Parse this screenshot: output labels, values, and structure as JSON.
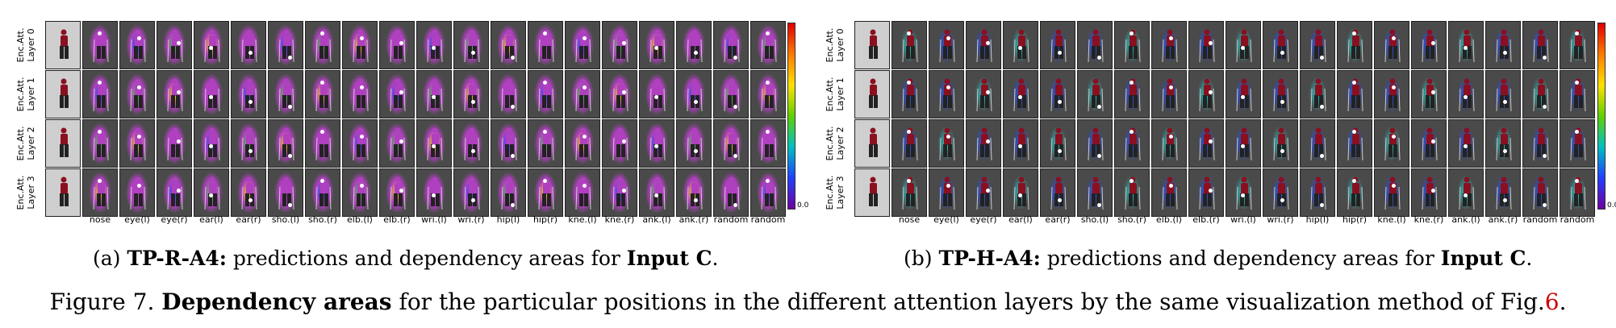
{
  "panels": [
    {
      "id": "a",
      "row_labels": [
        {
          "line1": "Enc.Att.",
          "line2": "Layer 0"
        },
        {
          "line1": "Enc.Att.",
          "line2": "Layer 1"
        },
        {
          "line1": "Enc.Att.",
          "line2": "Layer 2"
        },
        {
          "line1": "Enc.Att.",
          "line2": "Layer 3"
        }
      ],
      "column_labels": [
        "nose",
        "eye(l)",
        "eye(r)",
        "ear(l)",
        "ear(r)",
        "sho.(l)",
        "sho.(r)",
        "elb.(l)",
        "elb.(r)",
        "wri.(l)",
        "wri.(r)",
        "hip(l)",
        "hip(r)",
        "kne.(l)",
        "kne.(r)",
        "ank.(l)",
        "ank.(r)",
        "random",
        "random"
      ],
      "colorbar": {
        "min_label": "0.0"
      },
      "caption": {
        "prefix": "(a)",
        "model": "TP-R-A4:",
        "middle": " predictions and dependency areas for ",
        "input": "Input C",
        "suffix": "."
      }
    },
    {
      "id": "b",
      "row_labels": [
        {
          "line1": "Enc.Att.",
          "line2": "Layer 0"
        },
        {
          "line1": "Enc.Att.",
          "line2": "Layer 1"
        },
        {
          "line1": "Enc.Att.",
          "line2": "Layer 2"
        },
        {
          "line1": "Enc.Att.",
          "line2": "Layer 3"
        }
      ],
      "column_labels": [
        "nose",
        "eye(l)",
        "eye(r)",
        "ear(l)",
        "ear(r)",
        "sho.(l)",
        "sho.(r)",
        "elb.(l)",
        "elb.(r)",
        "wri.(l)",
        "wri.(r)",
        "hip(l)",
        "hip(r)",
        "kne.(l)",
        "kne.(r)",
        "ank.(l)",
        "ank.(r)",
        "random",
        "random"
      ],
      "colorbar": {
        "min_label": "0.0"
      },
      "caption": {
        "prefix": "(b)",
        "model": "TP-H-A4:",
        "middle": " predictions and dependency areas for ",
        "input": "Input C",
        "suffix": "."
      }
    }
  ],
  "figure_caption": {
    "label": "Figure 7.",
    "bold": "Dependency areas",
    "text": " for the particular positions in the different attention layers by the same visualization method of Fig.",
    "ref": "6",
    "end": "."
  },
  "colors": {
    "heat_purple": "#b040c0",
    "heat_blue": "#2050ff",
    "heat_green": "#40d040",
    "heat_yellow": "#ffe000",
    "heat_red": "#ff3000",
    "skier_red": "#8a1020",
    "cyan": "#20d0d0"
  }
}
